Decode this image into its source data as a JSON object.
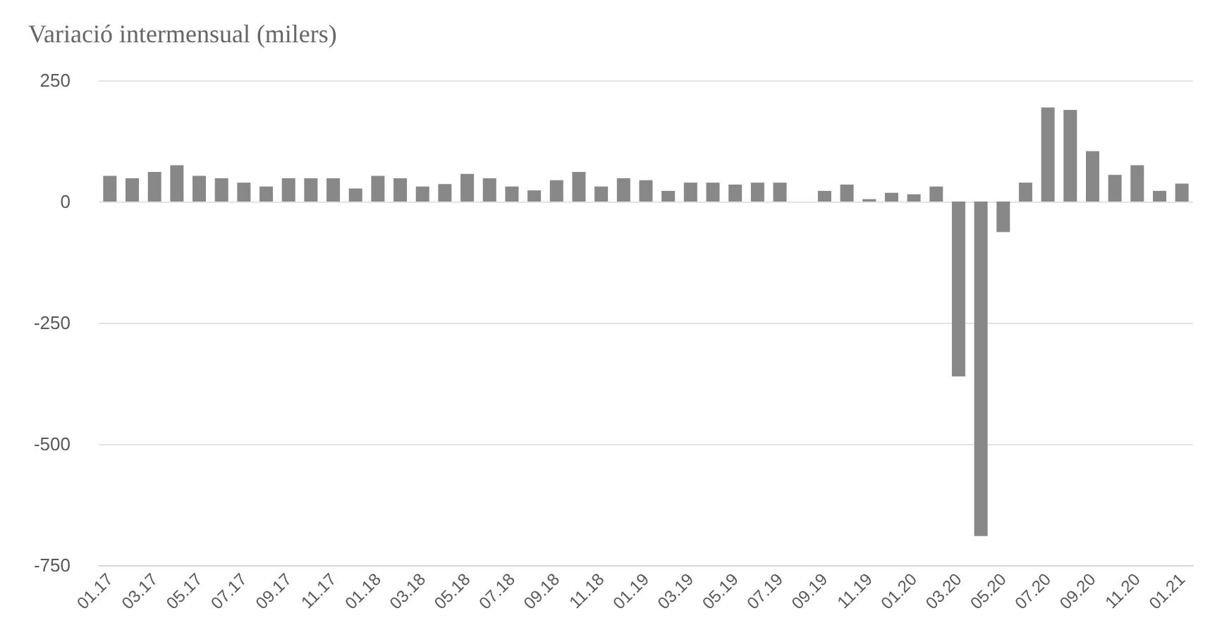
{
  "chart_data": {
    "type": "bar",
    "subtitle": "Variació intermensual (milers)",
    "categories": [
      "01.17",
      null,
      "03.17",
      null,
      "05.17",
      null,
      "07.17",
      null,
      "09.17",
      null,
      "11.17",
      null,
      "01.18",
      null,
      "03.18",
      null,
      "05.18",
      null,
      "07.18",
      null,
      "09.18",
      null,
      "11.18",
      null,
      "01.19",
      null,
      "03.19",
      null,
      "05.19",
      null,
      "07.19",
      null,
      "09.19",
      null,
      "11.19",
      null,
      "01.20",
      null,
      "03.20",
      null,
      "05.20",
      null,
      "07.20",
      null,
      "09.20",
      null,
      "11.20",
      null,
      "01.21"
    ],
    "values": [
      53,
      48,
      61,
      75,
      53,
      48,
      39,
      31,
      48,
      48,
      48,
      27,
      53,
      48,
      31,
      36,
      57,
      48,
      31,
      23,
      44,
      61,
      31,
      48,
      44,
      22,
      39,
      39,
      35,
      39,
      39,
      0,
      22,
      35,
      5,
      18,
      15,
      31,
      -361,
      -690,
      -63,
      39,
      194,
      189,
      104,
      55,
      75,
      22,
      37
    ],
    "color": "#888888",
    "ylim": [
      -750,
      250
    ],
    "yticks": [
      -750,
      -500,
      -250,
      0,
      250
    ],
    "grid": "y"
  }
}
